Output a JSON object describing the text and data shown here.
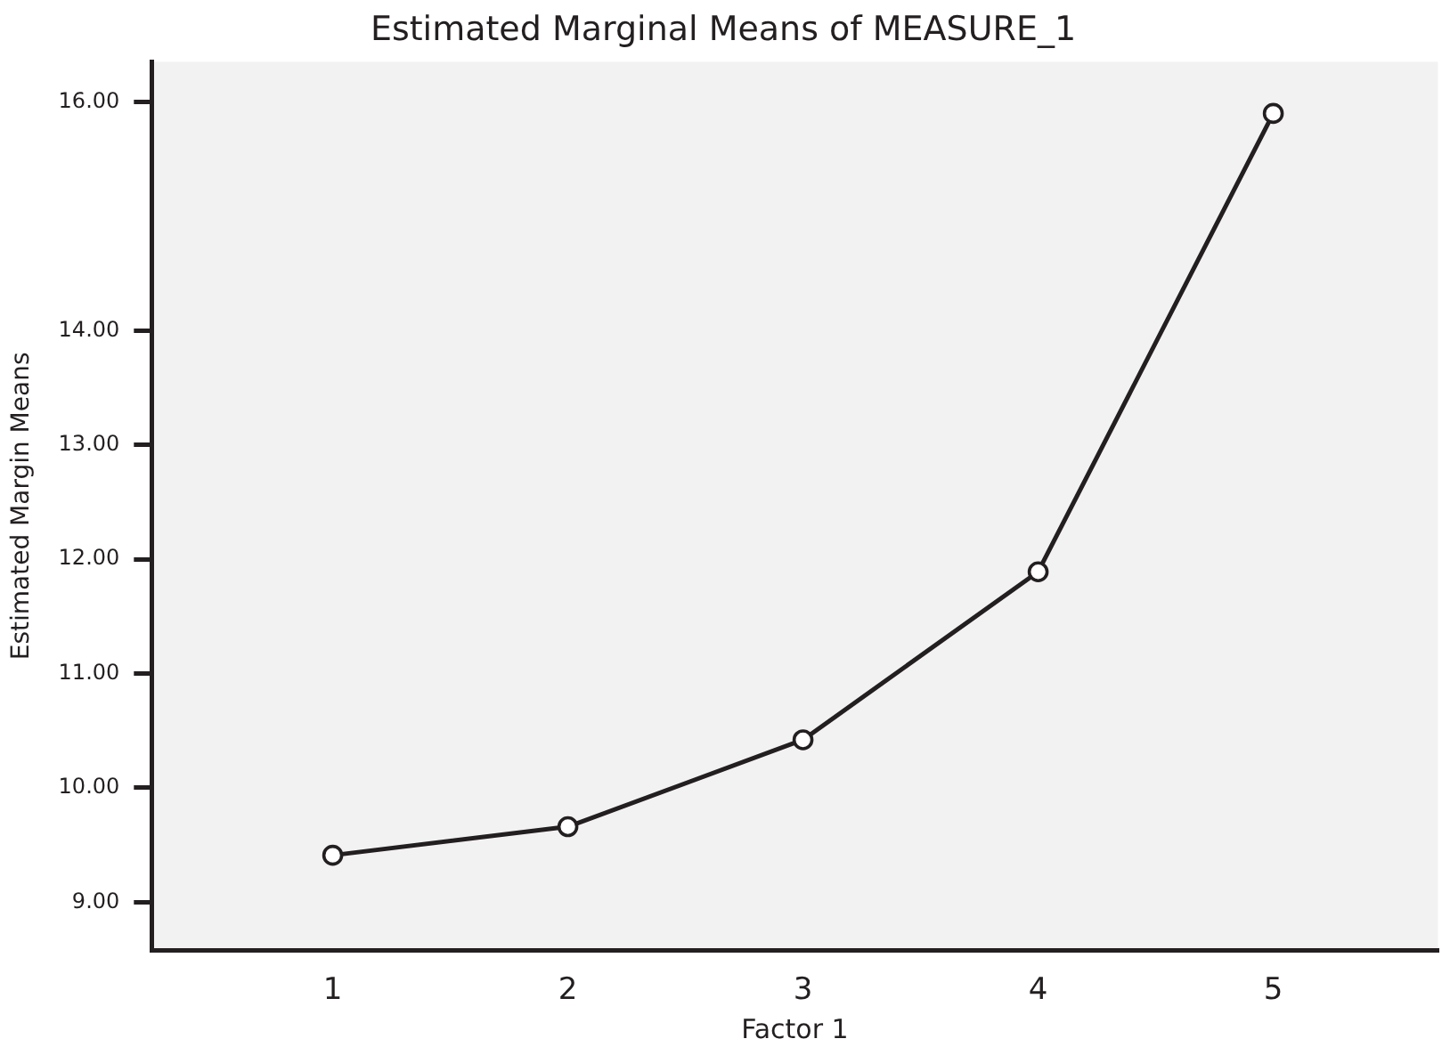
{
  "chart_data": {
    "type": "line",
    "title": "Estimated Marginal Means of MEASURE_1",
    "xlabel": "Factor 1",
    "ylabel": "Estimated Margin Means",
    "x": [
      1,
      2,
      3,
      4,
      5
    ],
    "xlim": [
      0.23,
      5.7
    ],
    "xticks": [
      1,
      2,
      3,
      4,
      5
    ],
    "ylim": [
      8.58,
      16.35
    ],
    "yticks": [
      {
        "value": 9,
        "label": "9.00"
      },
      {
        "value": 10,
        "label": "10.00"
      },
      {
        "value": 11,
        "label": "11.00"
      },
      {
        "value": 12,
        "label": "12.00"
      },
      {
        "value": 13,
        "label": "13.00"
      },
      {
        "value": 14,
        "label": "14.00"
      },
      {
        "value": 16,
        "label": "16.00"
      }
    ],
    "series": [
      {
        "color": "#231f20",
        "values": [
          9.41,
          9.66,
          10.42,
          11.89,
          15.9
        ]
      }
    ],
    "grid": false,
    "legend": false,
    "marker": "circle",
    "line_style": "solid"
  }
}
